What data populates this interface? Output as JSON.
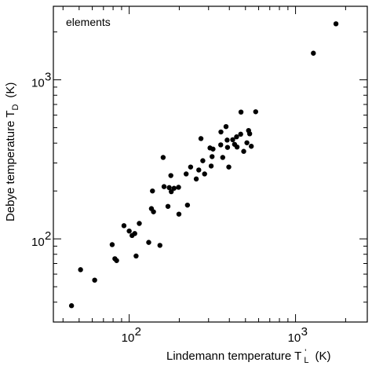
{
  "chart_data": {
    "type": "scatter",
    "xscale": "log",
    "yscale": "log",
    "xlim": [
      35,
      2700
    ],
    "ylim": [
      30,
      2900
    ],
    "xlabel": "Lindemann temperature T",
    "xlabel_sup": "'",
    "xlabel_sub": "L",
    "xlabel_unit": "(K)",
    "ylabel": "Debye temperature T",
    "ylabel_sub": "D",
    "ylabel_unit": "(K)",
    "annotation": "elements",
    "legend": "none",
    "grid": false,
    "x_ticks": [
      {
        "value": 100,
        "mantissa": "10",
        "exp": "2"
      },
      {
        "value": 1000,
        "mantissa": "10",
        "exp": "3"
      }
    ],
    "y_ticks": [
      {
        "value": 100,
        "mantissa": "10",
        "exp": "2"
      },
      {
        "value": 1000,
        "mantissa": "10",
        "exp": "3"
      }
    ],
    "points": [
      {
        "x": 45,
        "y": 38
      },
      {
        "x": 51,
        "y": 64
      },
      {
        "x": 62,
        "y": 55
      },
      {
        "x": 79,
        "y": 92
      },
      {
        "x": 82,
        "y": 75
      },
      {
        "x": 84,
        "y": 73
      },
      {
        "x": 93,
        "y": 121
      },
      {
        "x": 100,
        "y": 112
      },
      {
        "x": 104,
        "y": 105
      },
      {
        "x": 108,
        "y": 108
      },
      {
        "x": 110,
        "y": 78
      },
      {
        "x": 115,
        "y": 125
      },
      {
        "x": 131,
        "y": 95
      },
      {
        "x": 136,
        "y": 155
      },
      {
        "x": 138,
        "y": 200
      },
      {
        "x": 140,
        "y": 148
      },
      {
        "x": 153,
        "y": 91
      },
      {
        "x": 160,
        "y": 325
      },
      {
        "x": 162,
        "y": 213
      },
      {
        "x": 171,
        "y": 160
      },
      {
        "x": 174,
        "y": 210
      },
      {
        "x": 178,
        "y": 250
      },
      {
        "x": 179,
        "y": 198
      },
      {
        "x": 186,
        "y": 208
      },
      {
        "x": 198,
        "y": 211
      },
      {
        "x": 199,
        "y": 143
      },
      {
        "x": 220,
        "y": 256
      },
      {
        "x": 224,
        "y": 163
      },
      {
        "x": 234,
        "y": 283
      },
      {
        "x": 253,
        "y": 238
      },
      {
        "x": 262,
        "y": 271
      },
      {
        "x": 270,
        "y": 427
      },
      {
        "x": 277,
        "y": 310
      },
      {
        "x": 284,
        "y": 256
      },
      {
        "x": 306,
        "y": 373
      },
      {
        "x": 311,
        "y": 287
      },
      {
        "x": 315,
        "y": 329
      },
      {
        "x": 319,
        "y": 367
      },
      {
        "x": 355,
        "y": 390
      },
      {
        "x": 356,
        "y": 470
      },
      {
        "x": 365,
        "y": 325
      },
      {
        "x": 382,
        "y": 508
      },
      {
        "x": 388,
        "y": 418
      },
      {
        "x": 390,
        "y": 376
      },
      {
        "x": 397,
        "y": 283
      },
      {
        "x": 419,
        "y": 420
      },
      {
        "x": 430,
        "y": 393
      },
      {
        "x": 442,
        "y": 438
      },
      {
        "x": 445,
        "y": 378
      },
      {
        "x": 468,
        "y": 455
      },
      {
        "x": 470,
        "y": 627
      },
      {
        "x": 488,
        "y": 355
      },
      {
        "x": 510,
        "y": 402
      },
      {
        "x": 522,
        "y": 480
      },
      {
        "x": 530,
        "y": 458
      },
      {
        "x": 542,
        "y": 382
      },
      {
        "x": 576,
        "y": 630
      },
      {
        "x": 1280,
        "y": 1470
      },
      {
        "x": 1750,
        "y": 2250
      }
    ]
  }
}
